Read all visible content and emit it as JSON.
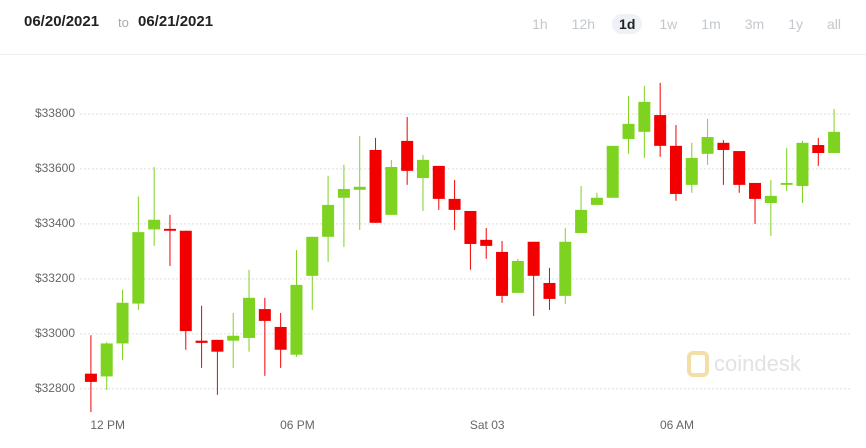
{
  "date_from": "06/20/2021",
  "date_sep": "to",
  "date_to": "06/21/2021",
  "range_buttons": [
    "1h",
    "12h",
    "1d",
    "1w",
    "1m",
    "3m",
    "1y",
    "all"
  ],
  "watermark": "coindesk",
  "chart_data": {
    "type": "candlestick",
    "categories": [
      null,
      "12 PM",
      null,
      null,
      null,
      null,
      null,
      null,
      null,
      null,
      null,
      null,
      null,
      "06 PM",
      null,
      null,
      null,
      null,
      null,
      null,
      null,
      null,
      null,
      null,
      null,
      "Sat 03",
      null,
      null,
      null,
      null,
      null,
      null,
      null,
      null,
      null,
      null,
      null,
      "06 AM",
      null,
      null,
      null,
      null,
      null,
      null,
      null,
      null,
      null,
      null
    ],
    "open": [
      32855,
      32845,
      32965,
      33110,
      33380,
      33382,
      33375,
      32975,
      32978,
      32975,
      32985,
      33090,
      33025,
      32924,
      33211,
      33353,
      33495,
      33524,
      33669,
      33433,
      33702,
      33567,
      33611,
      33491,
      33447,
      33342,
      33298,
      33149,
      33335,
      33185,
      33138,
      33367,
      33469,
      33495,
      33709,
      33735,
      33796,
      33684,
      33542,
      33655,
      33695,
      33665,
      33549,
      33476,
      33542,
      33538,
      33687,
      33658
    ],
    "high": [
      32995,
      32970,
      33160,
      33500,
      33607,
      33433,
      33375,
      33102,
      32978,
      33076,
      33233,
      33131,
      33076,
      33305,
      33353,
      33575,
      33615,
      33720,
      33713,
      33633,
      33789,
      33651,
      33611,
      33560,
      33447,
      33385,
      33338,
      33273,
      33335,
      33240,
      33385,
      33538,
      33513,
      33684,
      33865,
      33902,
      33913,
      33760,
      33695,
      33782,
      33705,
      33665,
      33549,
      33560,
      33676,
      33702,
      33713,
      33818
    ],
    "low": [
      32715,
      32795,
      32905,
      33087,
      33320,
      33247,
      32942,
      32876,
      32778,
      32876,
      32935,
      32847,
      32876,
      32916,
      33087,
      33262,
      33316,
      33378,
      33404,
      33433,
      33542,
      33447,
      33451,
      33378,
      33233,
      33273,
      33113,
      33149,
      33065,
      33087,
      33109,
      33367,
      33469,
      33495,
      33655,
      33640,
      33644,
      33484,
      33513,
      33615,
      33542,
      33513,
      33400,
      33356,
      33520,
      33476,
      33611,
      33658
    ],
    "close": [
      32825,
      32965,
      33113,
      33370,
      33415,
      33375,
      33010,
      32967,
      32935,
      32993,
      33131,
      33047,
      32942,
      33178,
      33353,
      33469,
      33527,
      33535,
      33404,
      33607,
      33593,
      33633,
      33491,
      33451,
      33327,
      33320,
      33138,
      33265,
      33211,
      33127,
      33335,
      33451,
      33495,
      33684,
      33764,
      33844,
      33684,
      33509,
      33640,
      33716,
      33669,
      33542,
      33491,
      33502,
      33549,
      33695,
      33658,
      33735
    ],
    "up_color": "#7ed321",
    "down_color": "#f20000",
    "ylim": [
      32650,
      34000
    ],
    "yticks": [
      {
        "value": 32800,
        "label": "$32800"
      },
      {
        "value": 33000,
        "label": "$33000"
      },
      {
        "value": 33200,
        "label": "$33200"
      },
      {
        "value": 33400,
        "label": "$33400"
      },
      {
        "value": 33600,
        "label": "$33600"
      },
      {
        "value": 33800,
        "label": "$33800"
      }
    ],
    "grid": true
  }
}
